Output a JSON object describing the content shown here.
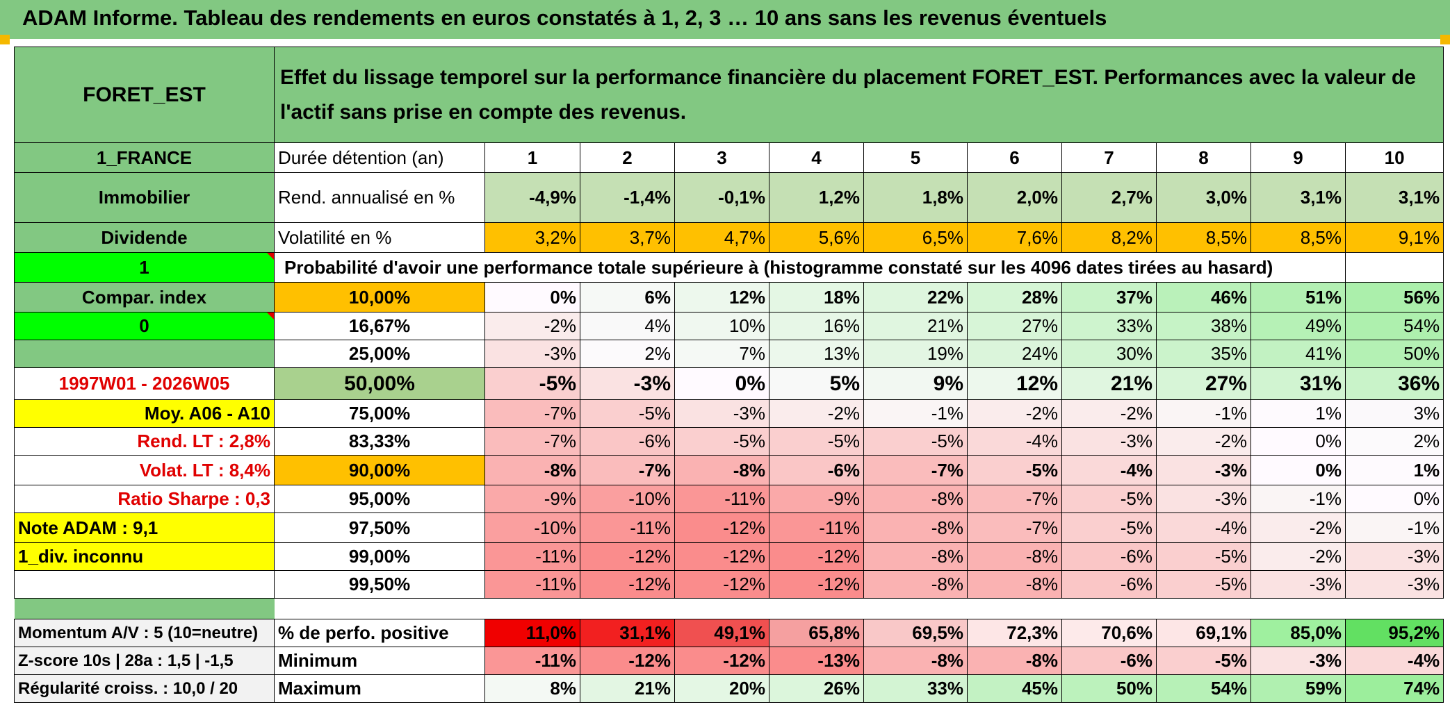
{
  "title": "ADAM Informe. Tableau des rendements en euros constatés à 1, 2, 3 … 10 ans sans les revenus éventuels",
  "fund": "FORET_EST",
  "header_desc": "Effet du lissage temporel sur la performance financière du placement FORET_EST. Performances avec la valeur de l'actif sans prise en compte des revenus.",
  "left": {
    "country": "1_FRANCE",
    "category": "Immobilier",
    "type": "Dividende",
    "green1": "1",
    "compar": "Compar. index",
    "green2": "0",
    "period": "1997W01 - 2026W05",
    "moy": "Moy. A06 - A10",
    "rend_lt": "Rend. LT :   2,8%",
    "volat_lt": "Volat. LT :   8,4%",
    "sharpe": "Ratio Sharpe :    0,3",
    "note": "Note ADAM : 9,1",
    "div": "1_div. inconnu",
    "momentum": "Momentum A/V : 5 (10=neutre)",
    "zscore": "Z-score 10s | 28a : 1,5 | -1,5",
    "regularite": "Régularité croiss. : 10,0 / 20"
  },
  "labels": {
    "duree": "Durée détention (an)",
    "rend": "Rend. annualisé en %",
    "volat": "Volatilité en %",
    "proba": "Probabilité d'avoir une performance totale supérieure à (histogramme constaté sur les 4096 dates tirées au hasard)",
    "positive": "% de perfo. positive",
    "minimum": "Minimum",
    "maximum": "Maximum"
  },
  "years": [
    "1",
    "2",
    "3",
    "4",
    "5",
    "6",
    "7",
    "8",
    "9",
    "10"
  ],
  "rend": [
    "-4,9%",
    "-1,4%",
    "-0,1%",
    "1,2%",
    "1,8%",
    "2,0%",
    "2,7%",
    "3,0%",
    "3,1%",
    "3,1%"
  ],
  "volat": [
    "3,2%",
    "3,7%",
    "4,7%",
    "5,6%",
    "6,5%",
    "7,6%",
    "8,2%",
    "8,5%",
    "8,5%",
    "9,1%"
  ],
  "prob_rows": [
    {
      "level": "10,00%",
      "values": [
        "0%",
        "6%",
        "12%",
        "18%",
        "22%",
        "28%",
        "37%",
        "46%",
        "51%",
        "56%"
      ]
    },
    {
      "level": "16,67%",
      "values": [
        "-2%",
        "4%",
        "10%",
        "16%",
        "21%",
        "27%",
        "33%",
        "38%",
        "49%",
        "54%"
      ]
    },
    {
      "level": "25,00%",
      "values": [
        "-3%",
        "2%",
        "7%",
        "13%",
        "19%",
        "24%",
        "30%",
        "35%",
        "41%",
        "50%"
      ]
    },
    {
      "level": "50,00%",
      "values": [
        "-5%",
        "-3%",
        "0%",
        "5%",
        "9%",
        "12%",
        "21%",
        "27%",
        "31%",
        "36%"
      ]
    },
    {
      "level": "75,00%",
      "values": [
        "-7%",
        "-5%",
        "-3%",
        "-2%",
        "-1%",
        "-2%",
        "-2%",
        "-1%",
        "1%",
        "3%"
      ]
    },
    {
      "level": "83,33%",
      "values": [
        "-7%",
        "-6%",
        "-5%",
        "-5%",
        "-5%",
        "-4%",
        "-3%",
        "-2%",
        "0%",
        "2%"
      ]
    },
    {
      "level": "90,00%",
      "values": [
        "-8%",
        "-7%",
        "-8%",
        "-6%",
        "-7%",
        "-5%",
        "-4%",
        "-3%",
        "0%",
        "1%"
      ]
    },
    {
      "level": "95,00%",
      "values": [
        "-9%",
        "-10%",
        "-11%",
        "-9%",
        "-8%",
        "-7%",
        "-5%",
        "-3%",
        "-1%",
        "0%"
      ]
    },
    {
      "level": "97,50%",
      "values": [
        "-10%",
        "-11%",
        "-12%",
        "-11%",
        "-8%",
        "-7%",
        "-5%",
        "-4%",
        "-2%",
        "-1%"
      ]
    },
    {
      "level": "99,00%",
      "values": [
        "-11%",
        "-12%",
        "-12%",
        "-12%",
        "-8%",
        "-8%",
        "-6%",
        "-5%",
        "-2%",
        "-3%"
      ]
    },
    {
      "level": "99,50%",
      "values": [
        "-11%",
        "-12%",
        "-12%",
        "-12%",
        "-8%",
        "-8%",
        "-6%",
        "-5%",
        "-3%",
        "-3%"
      ]
    }
  ],
  "positive": [
    "11,0%",
    "31,1%",
    "49,1%",
    "65,8%",
    "69,5%",
    "72,3%",
    "70,6%",
    "69,1%",
    "85,0%",
    "95,2%"
  ],
  "minimum": [
    "-11%",
    "-12%",
    "-12%",
    "-13%",
    "-8%",
    "-8%",
    "-6%",
    "-5%",
    "-3%",
    "-4%"
  ],
  "maximum": [
    "8%",
    "21%",
    "20%",
    "26%",
    "33%",
    "45%",
    "50%",
    "54%",
    "59%",
    "74%"
  ],
  "colors": {
    "positive_bg": [
      "#f00000",
      "#f22020",
      "#f05050",
      "#f5a0a0",
      "#f9c8c8",
      "#fde6e6",
      "#fdeaea",
      "#fde6e6",
      "#9ff09f",
      "#62e062"
    ]
  }
}
